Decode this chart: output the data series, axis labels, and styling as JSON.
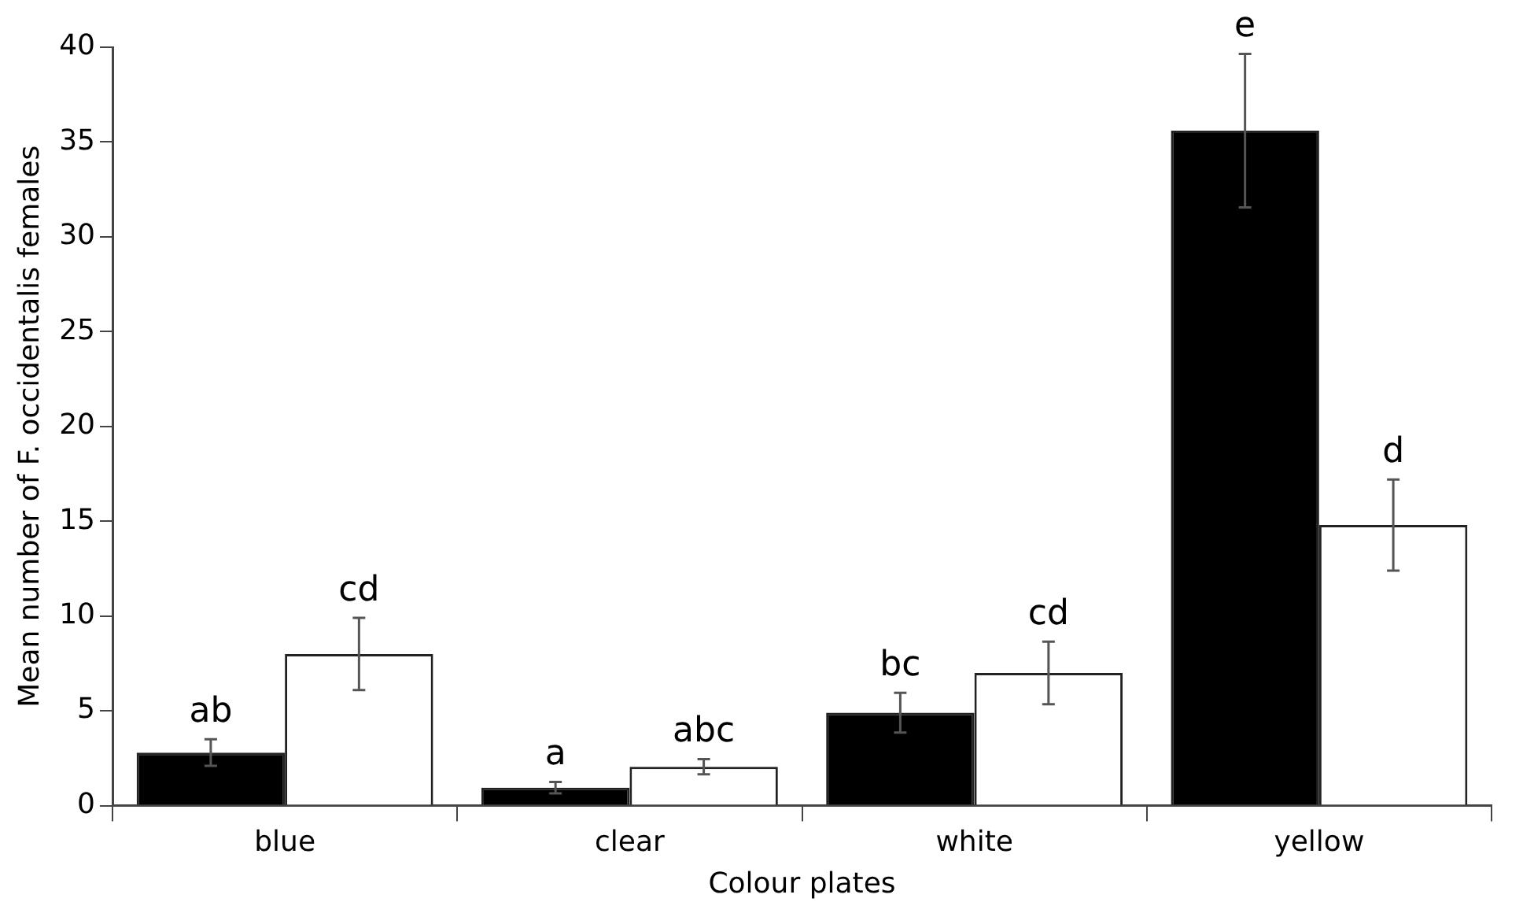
{
  "chart_data": {
    "type": "bar",
    "xlabel": "Colour plates",
    "ylabel": "Mean number of F. occidentalis females",
    "categories": [
      "blue",
      "clear",
      "white",
      "yellow"
    ],
    "series": [
      {
        "color": "#000000",
        "values": [
          2.8,
          0.95,
          4.9,
          35.6
        ],
        "errors": [
          0.7,
          0.3,
          1.05,
          4.05
        ],
        "value_labels": [
          "ab",
          "a",
          "bc",
          "e"
        ]
      },
      {
        "color": "#ffffff",
        "values": [
          8.0,
          2.05,
          7.0,
          14.8
        ],
        "errors": [
          1.9,
          0.4,
          1.65,
          2.4
        ],
        "value_labels": [
          "cd",
          "abc",
          "cd",
          "d"
        ]
      }
    ],
    "ylim": [
      0,
      40
    ],
    "yticks": [
      0,
      5,
      10,
      15,
      20,
      25,
      30,
      35,
      40
    ],
    "grid": false,
    "legend": false
  }
}
